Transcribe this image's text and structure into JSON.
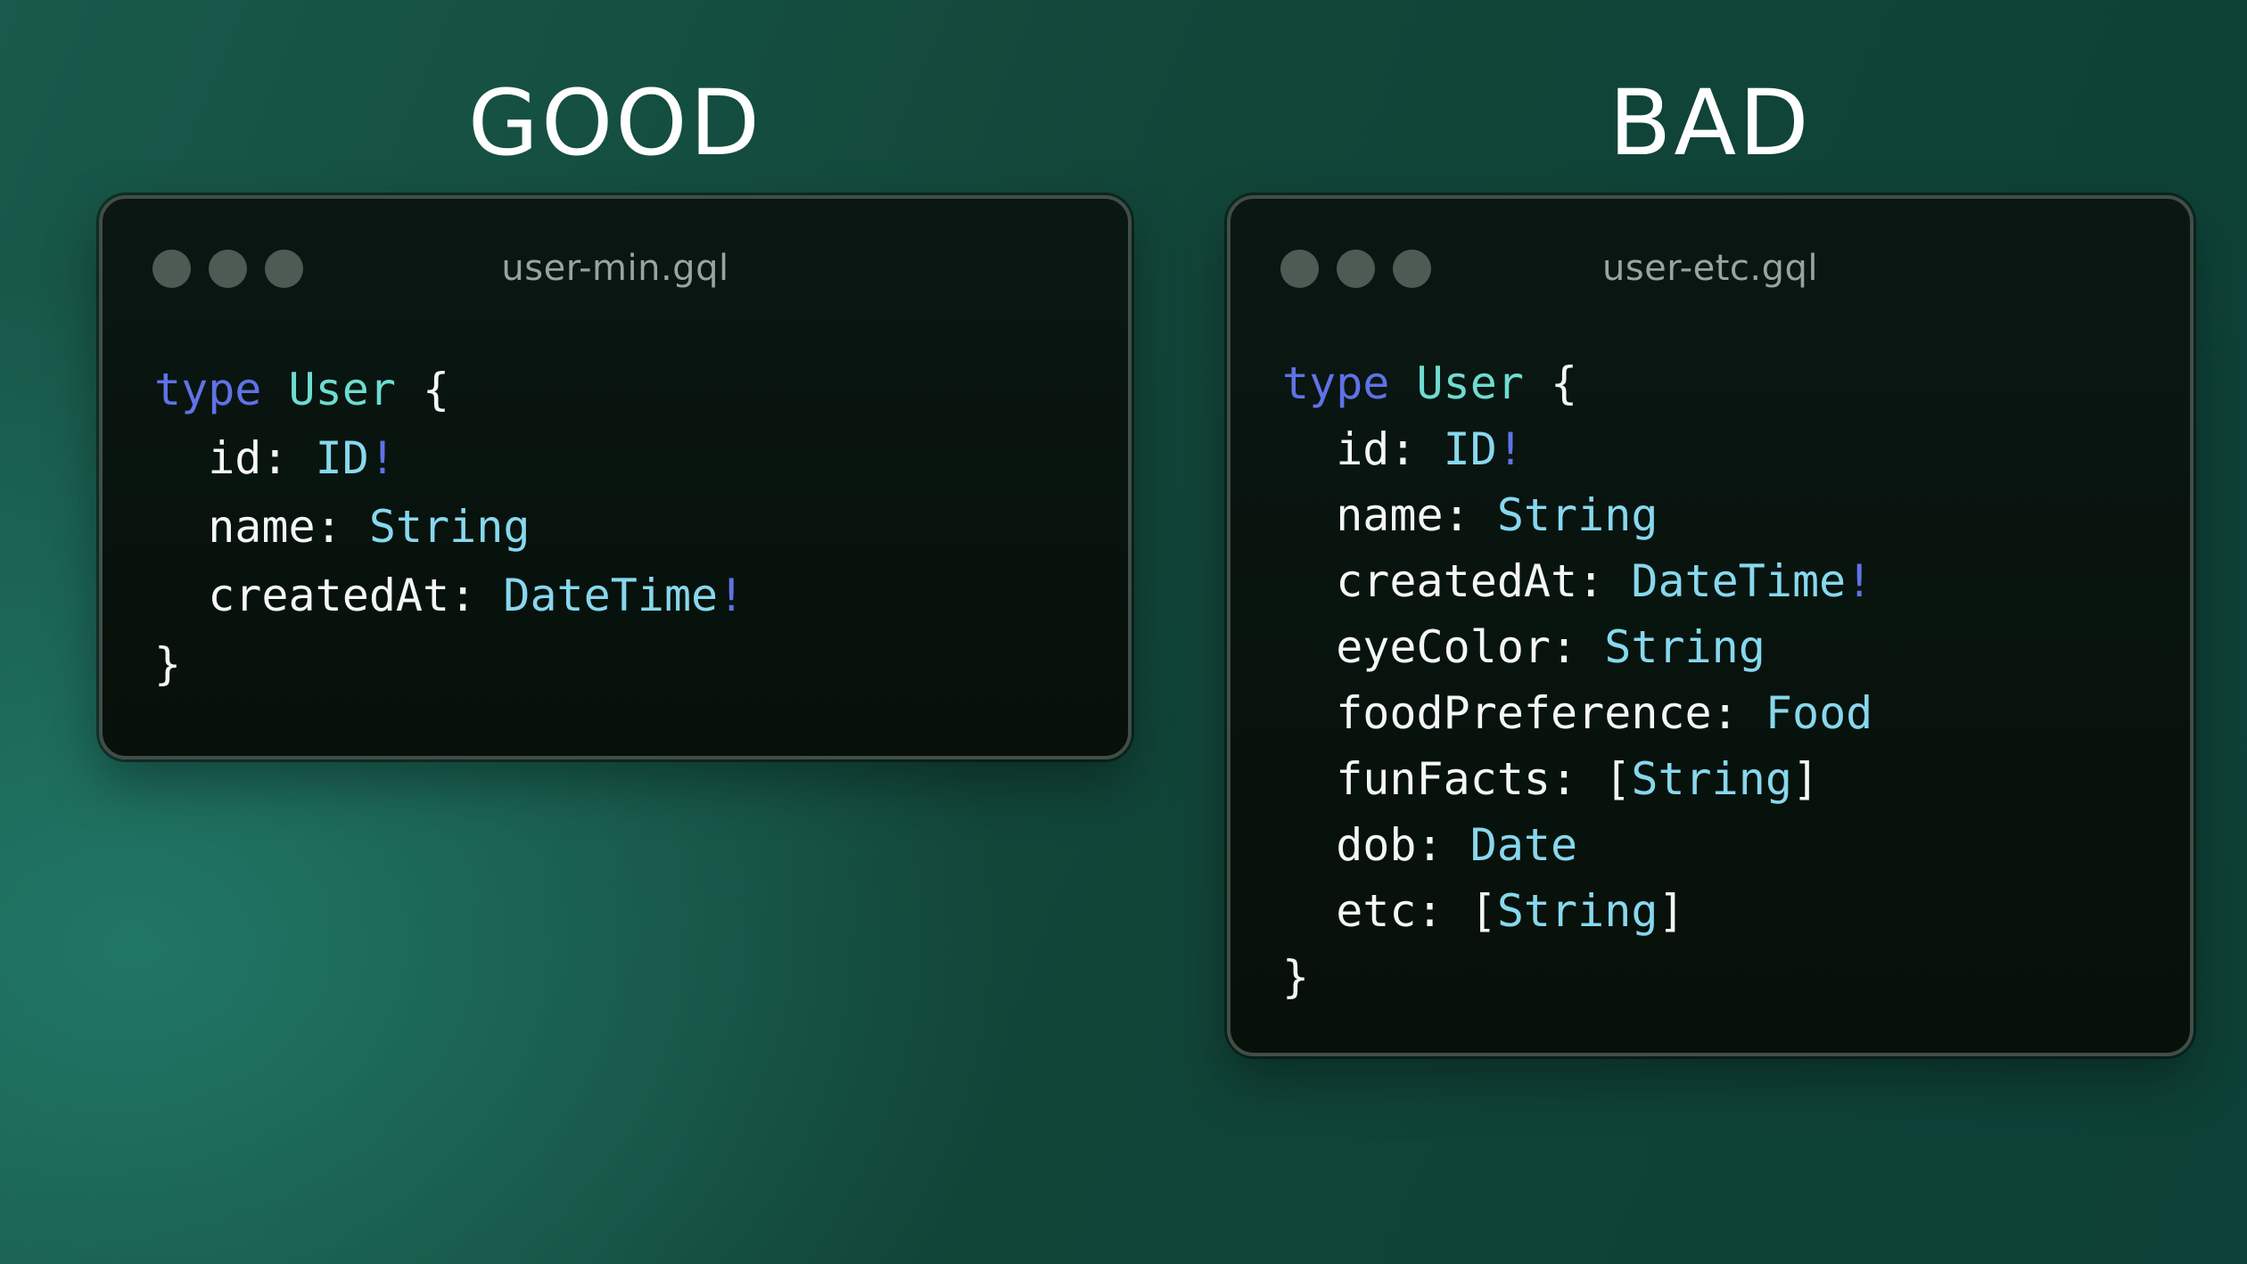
{
  "titles": {
    "good": "GOOD",
    "bad": "BAD"
  },
  "windows": [
    {
      "name": "good",
      "filename": "user-min.gql",
      "lines": [
        [
          {
            "t": "type ",
            "c": "kw"
          },
          {
            "t": "User",
            "c": "tn"
          },
          {
            "t": " {",
            "c": "pl"
          }
        ],
        [
          {
            "t": "  id: ",
            "c": "pl"
          },
          {
            "t": "ID",
            "c": "sc"
          },
          {
            "t": "!",
            "c": "kw"
          }
        ],
        [
          {
            "t": "  name: ",
            "c": "pl"
          },
          {
            "t": "String",
            "c": "sc"
          }
        ],
        [
          {
            "t": "  createdAt: ",
            "c": "pl"
          },
          {
            "t": "DateTime",
            "c": "sc"
          },
          {
            "t": "!",
            "c": "kw"
          }
        ],
        [
          {
            "t": "}",
            "c": "pl"
          }
        ]
      ]
    },
    {
      "name": "bad",
      "filename": "user-etc.gql",
      "lines": [
        [
          {
            "t": "type ",
            "c": "kw"
          },
          {
            "t": "User",
            "c": "tn"
          },
          {
            "t": " {",
            "c": "pl"
          }
        ],
        [
          {
            "t": "  id: ",
            "c": "pl"
          },
          {
            "t": "ID",
            "c": "sc"
          },
          {
            "t": "!",
            "c": "kw"
          }
        ],
        [
          {
            "t": "  name: ",
            "c": "pl"
          },
          {
            "t": "String",
            "c": "sc"
          }
        ],
        [
          {
            "t": "  createdAt: ",
            "c": "pl"
          },
          {
            "t": "DateTime",
            "c": "sc"
          },
          {
            "t": "!",
            "c": "kw"
          }
        ],
        [
          {
            "t": "  eyeColor: ",
            "c": "pl"
          },
          {
            "t": "String",
            "c": "sc"
          }
        ],
        [
          {
            "t": "  foodPreference: ",
            "c": "pl"
          },
          {
            "t": "Food",
            "c": "sc"
          }
        ],
        [
          {
            "t": "  funFacts: ",
            "c": "pl"
          },
          {
            "t": "[",
            "c": "pl"
          },
          {
            "t": "String",
            "c": "sc"
          },
          {
            "t": "]",
            "c": "pl"
          }
        ],
        [
          {
            "t": "  dob: ",
            "c": "pl"
          },
          {
            "t": "Date",
            "c": "sc"
          }
        ],
        [
          {
            "t": "  etc: ",
            "c": "pl"
          },
          {
            "t": "[",
            "c": "pl"
          },
          {
            "t": "String",
            "c": "sc"
          },
          {
            "t": "]",
            "c": "pl"
          }
        ],
        [
          {
            "t": "}",
            "c": "pl"
          }
        ]
      ]
    }
  ],
  "colors": {
    "title": "#ffffff",
    "filename": "#9aa49f",
    "dot": "#4e5a54",
    "keyword": "#6072e6",
    "typename": "#6edcd0",
    "scalar": "#87d8ee",
    "plain": "#f4f7f6",
    "background-light": "#227a69",
    "background-dark": "#0d4036",
    "window-background": "#0a1713",
    "window-border": "#424d47"
  }
}
